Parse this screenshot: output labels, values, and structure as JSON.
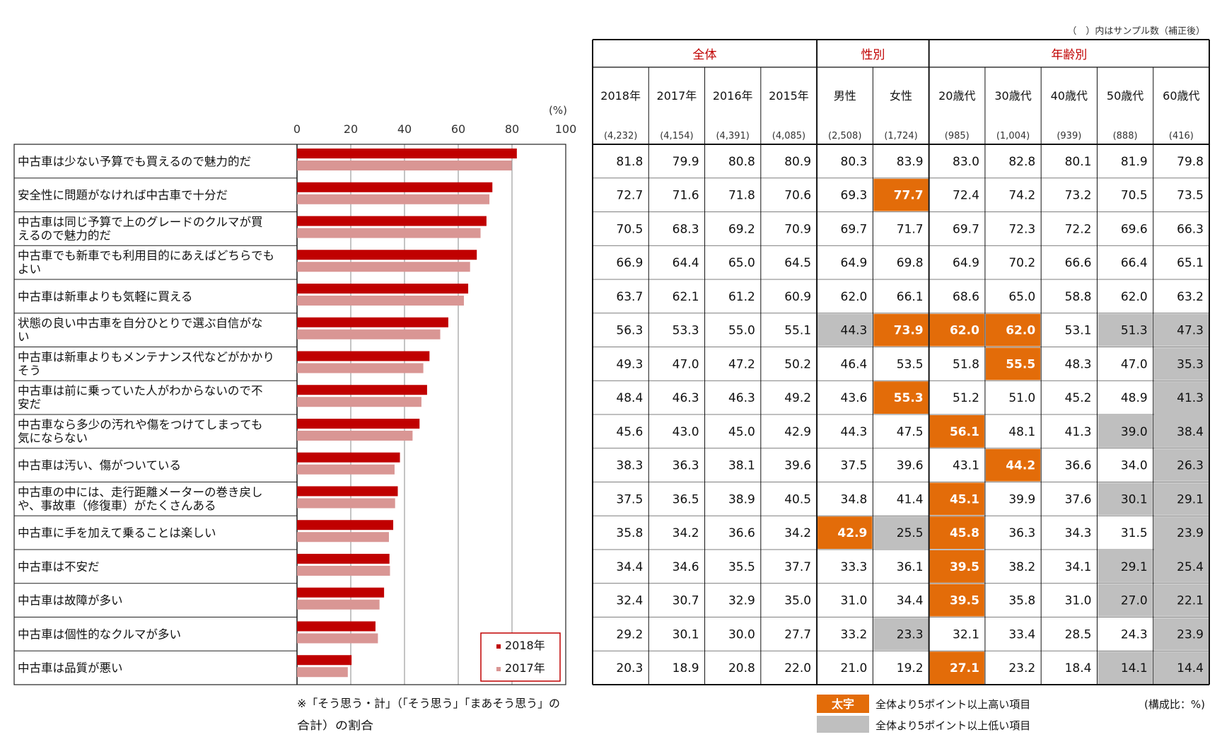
{
  "chart_data": [
    {
      "type": "bar",
      "orientation": "horizontal",
      "unit_label": "(%)",
      "xlim": [
        0,
        100
      ],
      "ticks": [
        "0",
        "20",
        "40",
        "60",
        "80",
        "100"
      ],
      "grid": true,
      "legend_position": "bottom-right",
      "categories": [
        "中古車は少ない予算でも買えるので魅力的だ",
        "安全性に問題がなければ中古車で十分だ",
        [
          "中古車は同じ予算で上のグレードのクルマが買",
          "えるので魅力的だ"
        ],
        [
          "中古車でも新車でも利用目的にあえばどちらでも",
          "よい"
        ],
        "中古車は新車よりも気軽に買える",
        [
          "状態の良い中古車を自分ひとりで選ぶ自信がな",
          "い"
        ],
        [
          "中古車は新車よりもメンテナンス代などがかかり",
          "そう"
        ],
        [
          "中古車は前に乗っていた人がわからないので不",
          "安だ"
        ],
        [
          "中古車なら多少の汚れや傷をつけてしまっても",
          "気にならない"
        ],
        "中古車は汚い、傷がついている",
        [
          "中古車の中には、走行距離メーターの巻き戻し",
          "や、事故車（修復車）がたくさんある"
        ],
        "中古車に手を加えて乗ることは楽しい",
        "中古車は不安だ",
        "中古車は故障が多い",
        "中古車は個性的なクルマが多い",
        "中古車は品質が悪い"
      ],
      "series": [
        {
          "name": "2018年",
          "color": "#c00000",
          "values": [
            81.8,
            72.7,
            70.5,
            66.9,
            63.7,
            56.3,
            49.3,
            48.4,
            45.6,
            38.3,
            37.5,
            35.8,
            34.4,
            32.4,
            29.2,
            20.3
          ]
        },
        {
          "name": "2017年",
          "color": "#d99694",
          "values": [
            79.9,
            71.6,
            68.3,
            64.4,
            62.1,
            53.3,
            47.0,
            46.3,
            43.0,
            36.3,
            36.5,
            34.2,
            34.6,
            30.7,
            30.1,
            18.9
          ]
        }
      ],
      "footnote": [
        "※「そう思う・計」（「そう思う」「まあそう思う」の",
        "合計）の割合"
      ]
    },
    {
      "type": "table",
      "sample_note": "（　）内はサンプル数（補正後）",
      "groups": [
        {
          "label": "全体",
          "cols": 4
        },
        {
          "label": "性別",
          "cols": 2
        },
        {
          "label": "年齢別",
          "cols": 5
        }
      ],
      "columns": [
        {
          "label": "2018年",
          "n": "(4,232)"
        },
        {
          "label": "2017年",
          "n": "(4,154)"
        },
        {
          "label": "2016年",
          "n": "(4,391)"
        },
        {
          "label": "2015年",
          "n": "(4,085)"
        },
        {
          "label": "男性",
          "n": "(2,508)"
        },
        {
          "label": "女性",
          "n": "(1,724)"
        },
        {
          "label": "20歳代",
          "n": "(985)"
        },
        {
          "label": "30歳代",
          "n": "(1,004)"
        },
        {
          "label": "40歳代",
          "n": "(939)"
        },
        {
          "label": "50歳代",
          "n": "(888)"
        },
        {
          "label": "60歳代",
          "n": "(416)"
        }
      ],
      "rows": [
        [
          "81.8",
          "79.9",
          "80.8",
          "80.9",
          "80.3",
          "83.9",
          "83.0",
          "82.8",
          "80.1",
          "81.9",
          "79.8"
        ],
        [
          "72.7",
          "71.6",
          "71.8",
          "70.6",
          "69.3",
          "77.7",
          "72.4",
          "74.2",
          "73.2",
          "70.5",
          "73.5"
        ],
        [
          "70.5",
          "68.3",
          "69.2",
          "70.9",
          "69.7",
          "71.7",
          "69.7",
          "72.3",
          "72.2",
          "69.6",
          "66.3"
        ],
        [
          "66.9",
          "64.4",
          "65.0",
          "64.5",
          "64.9",
          "69.8",
          "64.9",
          "70.2",
          "66.6",
          "66.4",
          "65.1"
        ],
        [
          "63.7",
          "62.1",
          "61.2",
          "60.9",
          "62.0",
          "66.1",
          "68.6",
          "65.0",
          "58.8",
          "62.0",
          "63.2"
        ],
        [
          "56.3",
          "53.3",
          "55.0",
          "55.1",
          "44.3",
          "73.9",
          "62.0",
          "62.0",
          "53.1",
          "51.3",
          "47.3"
        ],
        [
          "49.3",
          "47.0",
          "47.2",
          "50.2",
          "46.4",
          "53.5",
          "51.8",
          "55.5",
          "48.3",
          "47.0",
          "35.3"
        ],
        [
          "48.4",
          "46.3",
          "46.3",
          "49.2",
          "43.6",
          "55.3",
          "51.2",
          "51.0",
          "45.2",
          "48.9",
          "41.3"
        ],
        [
          "45.6",
          "43.0",
          "45.0",
          "42.9",
          "44.3",
          "47.5",
          "56.1",
          "48.1",
          "41.3",
          "39.0",
          "38.4"
        ],
        [
          "38.3",
          "36.3",
          "38.1",
          "39.6",
          "37.5",
          "39.6",
          "43.1",
          "44.2",
          "36.6",
          "34.0",
          "26.3"
        ],
        [
          "37.5",
          "36.5",
          "38.9",
          "40.5",
          "34.8",
          "41.4",
          "45.1",
          "39.9",
          "37.6",
          "30.1",
          "29.1"
        ],
        [
          "35.8",
          "34.2",
          "36.6",
          "34.2",
          "42.9",
          "25.5",
          "45.8",
          "36.3",
          "34.3",
          "31.5",
          "23.9"
        ],
        [
          "34.4",
          "34.6",
          "35.5",
          "37.7",
          "33.3",
          "36.1",
          "39.5",
          "38.2",
          "34.1",
          "29.1",
          "25.4"
        ],
        [
          "32.4",
          "30.7",
          "32.9",
          "35.0",
          "31.0",
          "34.4",
          "39.5",
          "35.8",
          "31.0",
          "27.0",
          "22.1"
        ],
        [
          "29.2",
          "30.1",
          "30.0",
          "27.7",
          "33.2",
          "23.3",
          "32.1",
          "33.4",
          "28.5",
          "24.3",
          "23.9"
        ],
        [
          "20.3",
          "18.9",
          "20.8",
          "22.0",
          "21.0",
          "19.2",
          "27.1",
          "23.2",
          "18.4",
          "14.1",
          "14.4"
        ]
      ],
      "highlight_high": [
        [
          1,
          5
        ],
        [
          5,
          5
        ],
        [
          5,
          6
        ],
        [
          5,
          7
        ],
        [
          6,
          7
        ],
        [
          7,
          5
        ],
        [
          8,
          6
        ],
        [
          9,
          7
        ],
        [
          10,
          6
        ],
        [
          11,
          4
        ],
        [
          11,
          6
        ],
        [
          12,
          6
        ],
        [
          13,
          6
        ],
        [
          15,
          6
        ]
      ],
      "highlight_low": [
        [
          5,
          4
        ],
        [
          5,
          9
        ],
        [
          5,
          10
        ],
        [
          6,
          10
        ],
        [
          7,
          10
        ],
        [
          8,
          9
        ],
        [
          8,
          10
        ],
        [
          9,
          10
        ],
        [
          10,
          9
        ],
        [
          10,
          10
        ],
        [
          11,
          5
        ],
        [
          11,
          10
        ],
        [
          12,
          9
        ],
        [
          12,
          10
        ],
        [
          13,
          9
        ],
        [
          13,
          10
        ],
        [
          14,
          5
        ],
        [
          14,
          10
        ],
        [
          15,
          9
        ],
        [
          15,
          10
        ]
      ],
      "legend": {
        "high_swatch": "太字",
        "high_text": "全体より5ポイント以上高い項目",
        "low_text": "全体より5ポイント以上低い項目",
        "unit": "(構成比：%)"
      },
      "colors": {
        "high": "#e36c09",
        "low": "#bfbfbf"
      }
    }
  ]
}
